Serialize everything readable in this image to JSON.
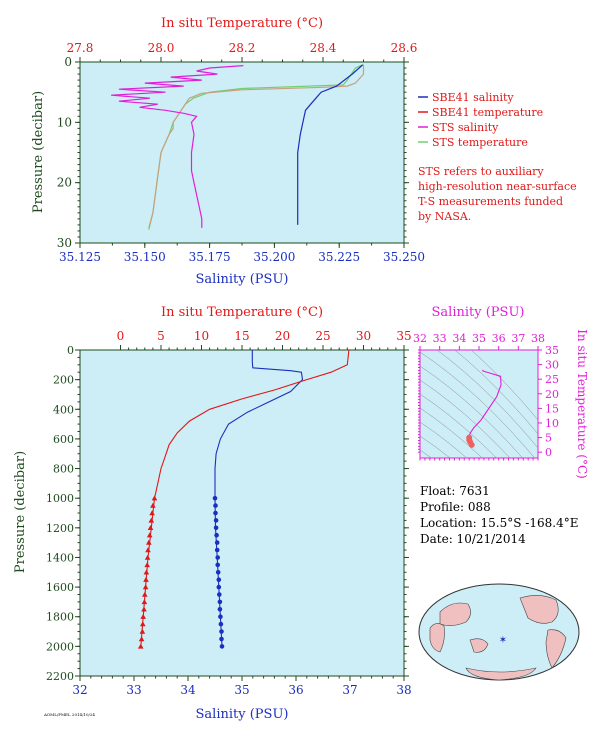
{
  "colors": {
    "blue": "#1a2fc0",
    "red": "#e01818",
    "magenta": "#e020d8",
    "green": "#70d070",
    "tan": "#c8a080",
    "axis_dark": "#1f4a1f",
    "plot_bg": "#cdeef6"
  },
  "chart_data": [
    {
      "id": "surface-ts-profile",
      "type": "line",
      "title": "",
      "top_axis_label": "In situ Temperature (°C)",
      "bottom_axis_label": "Salinity (PSU)",
      "left_axis_label": "Pressure (decibar)",
      "x_temp_lim": [
        27.8,
        28.6
      ],
      "x_temp_ticks": [
        "27.8",
        "28.0",
        "28.2",
        "28.4",
        "28.6"
      ],
      "x_sal_lim": [
        35.125,
        35.25
      ],
      "x_sal_ticks": [
        "35.125",
        "35.150",
        "35.175",
        "35.200",
        "35.225",
        "35.250"
      ],
      "ylim": [
        0,
        30
      ],
      "y_ticks": [
        "0",
        "10",
        "20",
        "30"
      ],
      "grid": false,
      "legend_position": "right",
      "legend": [
        "SBE41 salinity",
        "SBE41 temperature",
        "STS salinity",
        "STS temperature"
      ],
      "note": [
        "STS refers to auxiliary",
        "high-resolution near-surface",
        "T-S measurements funded",
        "by NASA."
      ],
      "series": [
        {
          "name": "SBE41 salinity",
          "axis": "salinity",
          "points": [
            [
              35.234,
              0.5
            ],
            [
              35.23,
              2
            ],
            [
              35.224,
              4
            ],
            [
              35.218,
              5
            ],
            [
              35.216,
              6
            ],
            [
              35.214,
              7
            ],
            [
              35.212,
              8
            ],
            [
              35.211,
              10
            ],
            [
              35.21,
              12
            ],
            [
              35.209,
              15
            ],
            [
              35.209,
              18
            ],
            [
              35.209,
              20
            ],
            [
              35.209,
              22
            ],
            [
              35.209,
              24
            ],
            [
              35.209,
              26
            ],
            [
              35.209,
              27
            ]
          ]
        },
        {
          "name": "SBE41 temperature",
          "axis": "temperature",
          "points": [
            [
              28.5,
              0.5
            ],
            [
              28.5,
              2
            ],
            [
              28.48,
              3.5
            ],
            [
              28.46,
              4
            ],
            [
              28.4,
              4.2
            ],
            [
              28.2,
              4.6
            ],
            [
              28.1,
              5.2
            ],
            [
              28.07,
              6
            ],
            [
              28.06,
              7
            ],
            [
              28.05,
              8
            ],
            [
              28.04,
              9
            ],
            [
              28.03,
              10
            ],
            [
              28.03,
              11
            ],
            [
              28.02,
              12
            ],
            [
              28.0,
              15
            ],
            [
              27.99,
              20
            ],
            [
              27.98,
              25
            ],
            [
              27.97,
              27.5
            ]
          ]
        },
        {
          "name": "STS salinity",
          "axis": "salinity",
          "points": [
            [
              35.188,
              0.6
            ],
            [
              35.175,
              1.0
            ],
            [
              35.17,
              1.5
            ],
            [
              35.178,
              2.0
            ],
            [
              35.16,
              2.5
            ],
            [
              35.172,
              3.0
            ],
            [
              35.15,
              3.5
            ],
            [
              35.165,
              4.0
            ],
            [
              35.14,
              4.5
            ],
            [
              35.158,
              5.0
            ],
            [
              35.137,
              5.5
            ],
            [
              35.152,
              6.0
            ],
            [
              35.14,
              6.5
            ],
            [
              35.155,
              7.0
            ],
            [
              35.148,
              7.5
            ],
            [
              35.158,
              8.0
            ],
            [
              35.165,
              8.5
            ],
            [
              35.17,
              9.0
            ],
            [
              35.168,
              10
            ],
            [
              35.169,
              12
            ],
            [
              35.168,
              15
            ],
            [
              35.168,
              18
            ],
            [
              35.169,
              20
            ],
            [
              35.17,
              22
            ],
            [
              35.171,
              24
            ],
            [
              35.172,
              26
            ],
            [
              35.172,
              27.5
            ]
          ]
        },
        {
          "name": "STS temperature",
          "axis": "temperature",
          "points": [
            [
              28.5,
              0.4
            ],
            [
              28.48,
              1.0
            ],
            [
              28.47,
              2.0
            ],
            [
              28.46,
              3.0
            ],
            [
              28.45,
              3.8
            ],
            [
              28.2,
              4.4
            ],
            [
              28.12,
              5.0
            ],
            [
              28.08,
              6.0
            ],
            [
              28.06,
              7.0
            ],
            [
              28.05,
              8.0
            ],
            [
              28.04,
              9.0
            ],
            [
              28.03,
              10
            ],
            [
              28.02,
              12
            ],
            [
              28.0,
              15
            ],
            [
              27.99,
              20
            ],
            [
              27.98,
              25
            ],
            [
              27.97,
              27.8
            ]
          ]
        }
      ]
    },
    {
      "id": "deep-ts-profile",
      "type": "line",
      "title": "",
      "top_axis_label": "In situ Temperature (°C)",
      "bottom_axis_label": "Salinity (PSU)",
      "left_axis_label": "Pressure (decibar)",
      "x_temp_lim": [
        -5,
        35
      ],
      "x_temp_ticks": [
        "0",
        "5",
        "10",
        "15",
        "20",
        "25",
        "30",
        "35"
      ],
      "x_sal_lim": [
        32,
        38
      ],
      "x_sal_ticks": [
        "32",
        "33",
        "34",
        "35",
        "36",
        "37",
        "38"
      ],
      "ylim": [
        0,
        2200
      ],
      "y_ticks": [
        "0",
        "200",
        "400",
        "600",
        "800",
        "1000",
        "1200",
        "1400",
        "1600",
        "1800",
        "2000",
        "2200"
      ],
      "grid": false,
      "series": [
        {
          "name": "Salinity",
          "axis": "salinity",
          "points": [
            [
              35.19,
              0
            ],
            [
              35.19,
              80
            ],
            [
              35.2,
              120
            ],
            [
              35.9,
              140
            ],
            [
              36.1,
              150
            ],
            [
              36.12,
              200
            ],
            [
              35.9,
              280
            ],
            [
              35.5,
              350
            ],
            [
              35.1,
              420
            ],
            [
              34.75,
              500
            ],
            [
              34.6,
              600
            ],
            [
              34.52,
              700
            ],
            [
              34.5,
              800
            ],
            [
              34.5,
              900
            ],
            [
              34.5,
              1000
            ],
            [
              34.51,
              1200
            ],
            [
              34.54,
              1400
            ],
            [
              34.57,
              1600
            ],
            [
              34.6,
              1800
            ],
            [
              34.63,
              2000
            ]
          ]
        },
        {
          "name": "Temperature",
          "axis": "temperature",
          "points": [
            [
              28.2,
              0
            ],
            [
              28.0,
              100
            ],
            [
              26,
              150
            ],
            [
              23,
              200
            ],
            [
              19,
              270
            ],
            [
              15,
              330
            ],
            [
              11,
              400
            ],
            [
              8.5,
              480
            ],
            [
              7,
              560
            ],
            [
              6,
              640
            ],
            [
              5.5,
              720
            ],
            [
              5,
              800
            ],
            [
              4.6,
              900
            ],
            [
              4.2,
              1000
            ],
            [
              3.8,
              1200
            ],
            [
              3.4,
              1400
            ],
            [
              3.1,
              1600
            ],
            [
              2.8,
              1800
            ],
            [
              2.5,
              2000
            ]
          ]
        }
      ],
      "markers_salinity": [
        [
          34.5,
          1000
        ],
        [
          34.51,
          1050
        ],
        [
          34.51,
          1100
        ],
        [
          34.52,
          1150
        ],
        [
          34.52,
          1200
        ],
        [
          34.53,
          1250
        ],
        [
          34.54,
          1300
        ],
        [
          34.54,
          1350
        ],
        [
          34.55,
          1400
        ],
        [
          34.55,
          1450
        ],
        [
          34.56,
          1500
        ],
        [
          34.57,
          1550
        ],
        [
          34.57,
          1600
        ],
        [
          34.58,
          1650
        ],
        [
          34.59,
          1700
        ],
        [
          34.59,
          1750
        ],
        [
          34.6,
          1800
        ],
        [
          34.61,
          1850
        ],
        [
          34.62,
          1900
        ],
        [
          34.62,
          1950
        ],
        [
          34.63,
          2000
        ]
      ],
      "markers_temperature": [
        [
          4.2,
          1000
        ],
        [
          4.0,
          1050
        ],
        [
          3.9,
          1100
        ],
        [
          3.8,
          1150
        ],
        [
          3.7,
          1200
        ],
        [
          3.6,
          1250
        ],
        [
          3.5,
          1300
        ],
        [
          3.4,
          1350
        ],
        [
          3.35,
          1400
        ],
        [
          3.3,
          1450
        ],
        [
          3.2,
          1500
        ],
        [
          3.15,
          1550
        ],
        [
          3.1,
          1600
        ],
        [
          3.0,
          1650
        ],
        [
          2.95,
          1700
        ],
        [
          2.9,
          1750
        ],
        [
          2.8,
          1800
        ],
        [
          2.75,
          1850
        ],
        [
          2.7,
          1900
        ],
        [
          2.6,
          1950
        ],
        [
          2.5,
          2000
        ]
      ]
    },
    {
      "id": "ts-diagram",
      "type": "line",
      "top_axis_label": "Salinity (PSU)",
      "right_axis_label": "In situ Temperature (°C)",
      "x_ticks": [
        "32",
        "33",
        "34",
        "35",
        "36",
        "37",
        "38"
      ],
      "xlim": [
        32,
        38
      ],
      "y_ticks": [
        "0",
        "5",
        "10",
        "15",
        "20",
        "25",
        "30",
        "35"
      ],
      "ylim": [
        -2,
        35
      ],
      "series": [
        {
          "name": "T-S",
          "points": [
            [
              35.19,
              28.2
            ],
            [
              35.2,
              27.8
            ],
            [
              36.1,
              26
            ],
            [
              36.12,
              23
            ],
            [
              35.9,
              19
            ],
            [
              35.5,
              15
            ],
            [
              35.1,
              11
            ],
            [
              34.75,
              8.5
            ],
            [
              34.6,
              7
            ],
            [
              34.52,
              6
            ],
            [
              34.5,
              5
            ],
            [
              34.5,
              4.2
            ],
            [
              34.55,
              3.5
            ],
            [
              34.63,
              2.5
            ]
          ]
        }
      ]
    }
  ],
  "info": {
    "float": "Float:  7631",
    "profile": "Profile:  088",
    "location": "Location:  15.5°S  -168.4°E",
    "date": "Date:  10/21/2014"
  },
  "footer": "AOML/PMEL 2014/10/24"
}
